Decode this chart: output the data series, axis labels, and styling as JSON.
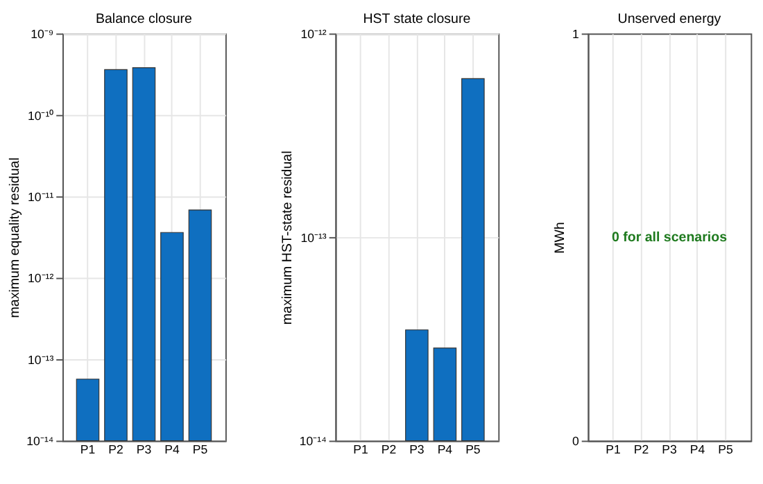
{
  "chart_data": [
    {
      "type": "bar",
      "title": "Balance closure",
      "ylabel": "maximum equality residual",
      "categories": [
        "P1",
        "P2",
        "P3",
        "P4",
        "P5"
      ],
      "values": [
        5.7e-14,
        3.6e-10,
        3.8e-10,
        3.6e-12,
        6.8e-12
      ],
      "color": "#0f6fc0",
      "log": true,
      "ylim": [
        1e-14,
        1e-09
      ],
      "yticks": [
        {
          "value": 1e-14,
          "label": "10⁻¹⁴"
        },
        {
          "value": 1e-13,
          "label": "10⁻¹³"
        },
        {
          "value": 1e-12,
          "label": "10⁻¹²"
        },
        {
          "value": 1e-11,
          "label": "10⁻¹¹"
        },
        {
          "value": 1e-10,
          "label": "10⁻¹⁰"
        },
        {
          "value": 1e-09,
          "label": "10⁻⁹"
        }
      ],
      "grid": true
    },
    {
      "type": "bar",
      "title": "HST state closure",
      "ylabel": "maximum HST-state residual",
      "categories": [
        "P1",
        "P2",
        "P3",
        "P4",
        "P5"
      ],
      "values": [
        null,
        null,
        3.5e-14,
        2.85e-14,
        6e-13
      ],
      "color": "#0f6fc0",
      "log": true,
      "ylim": [
        1e-14,
        1e-12
      ],
      "yticks": [
        {
          "value": 1e-14,
          "label": "10⁻¹⁴"
        },
        {
          "value": 1e-13,
          "label": "10⁻¹³"
        },
        {
          "value": 1e-12,
          "label": "10⁻¹²"
        }
      ],
      "grid": true
    },
    {
      "type": "bar",
      "title": "Unserved energy",
      "ylabel": "MWh",
      "categories": [
        "P1",
        "P2",
        "P3",
        "P4",
        "P5"
      ],
      "values": [
        0,
        0,
        0,
        0,
        0
      ],
      "color": "#0f6fc0",
      "ylim": [
        0,
        1
      ],
      "yticks": [
        0,
        1
      ],
      "grid": "x",
      "annotations": [
        "0 for all scenarios"
      ]
    }
  ]
}
